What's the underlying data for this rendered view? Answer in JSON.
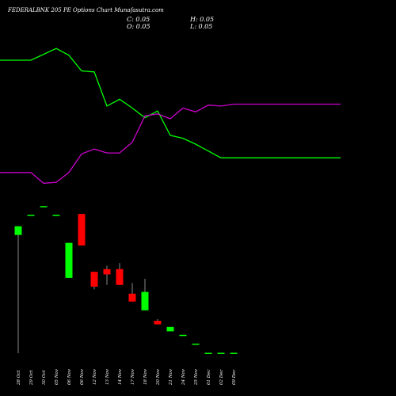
{
  "chart_data": {
    "type": "candlestick",
    "title": "FEDERALBNK 205 PE Options Chart Munafasutra.com",
    "ohlc_readout": {
      "C": "C: 0.05",
      "O": "O: 0.05",
      "H": "H: 0.05",
      "L": "L: 0.05"
    },
    "categories": [
      "28 Oct",
      "29 Oct",
      "30 Oct",
      "05 Nov",
      "06 Nov",
      "06 Nov",
      "12 Nov",
      "13 Nov",
      "14 Nov",
      "17 Nov",
      "18 Nov",
      "20 Nov",
      "21 Nov",
      "24 Nov",
      "25 Nov",
      "01 Dec",
      "02 Dec",
      "09 Dec"
    ],
    "candles": [
      {
        "open": 13.5,
        "high": 14.5,
        "low": 0.0,
        "close": 14.5
      },
      {
        "open": 15.8,
        "high": 15.8,
        "low": 15.8,
        "close": 15.8
      },
      {
        "open": 16.8,
        "high": 16.8,
        "low": 16.8,
        "close": 16.8
      },
      {
        "open": 15.8,
        "high": 15.8,
        "low": 15.8,
        "close": 15.8
      },
      {
        "open": 8.6,
        "high": 12.6,
        "low": 8.6,
        "close": 12.6
      },
      {
        "open": 15.9,
        "high": 15.9,
        "low": 12.3,
        "close": 12.3
      },
      {
        "open": 9.3,
        "high": 9.3,
        "low": 7.3,
        "close": 7.6
      },
      {
        "open": 9.6,
        "high": 10.0,
        "low": 7.8,
        "close": 9.0
      },
      {
        "open": 9.6,
        "high": 10.3,
        "low": 7.8,
        "close": 7.8
      },
      {
        "open": 6.8,
        "high": 8.0,
        "low": 5.9,
        "close": 5.9
      },
      {
        "open": 4.9,
        "high": 8.5,
        "low": 4.9,
        "close": 7.0
      },
      {
        "open": 3.7,
        "high": 3.9,
        "low": 3.3,
        "close": 3.3
      },
      {
        "open": 2.5,
        "high": 3.0,
        "low": 2.5,
        "close": 3.0
      },
      {
        "open": 2.1,
        "high": 2.1,
        "low": 2.1,
        "close": 2.1
      },
      {
        "open": 1.1,
        "high": 1.1,
        "low": 1.1,
        "close": 1.1
      },
      {
        "open": 0.05,
        "high": 0.05,
        "low": 0.05,
        "close": 0.05
      },
      {
        "open": 0.05,
        "high": 0.05,
        "low": 0.05,
        "close": 0.05
      },
      {
        "open": 0.05,
        "high": 0.05,
        "low": 0.05,
        "close": 0.05
      }
    ],
    "price_range": [
      0,
      17
    ],
    "series": [
      {
        "color": "#00ff00",
        "values": [
          88,
          88,
          94,
          100,
          93,
          77,
          76,
          41,
          48,
          39,
          29,
          36,
          11,
          8,
          2,
          -5,
          -12,
          -12
        ]
      },
      {
        "color": "#cc00cc",
        "values": [
          -27,
          -27,
          -38,
          -37,
          -27,
          -8,
          -3,
          -7,
          -7,
          4,
          31,
          33,
          28,
          39,
          35,
          42,
          41,
          43
        ]
      }
    ],
    "indicator_range": [
      -45,
      105
    ],
    "grid": false,
    "colors": {
      "background": "#000000",
      "up": "#00ff00",
      "down": "#ff0000",
      "wick": "#aaaaaa",
      "text": "#ffffff"
    }
  }
}
